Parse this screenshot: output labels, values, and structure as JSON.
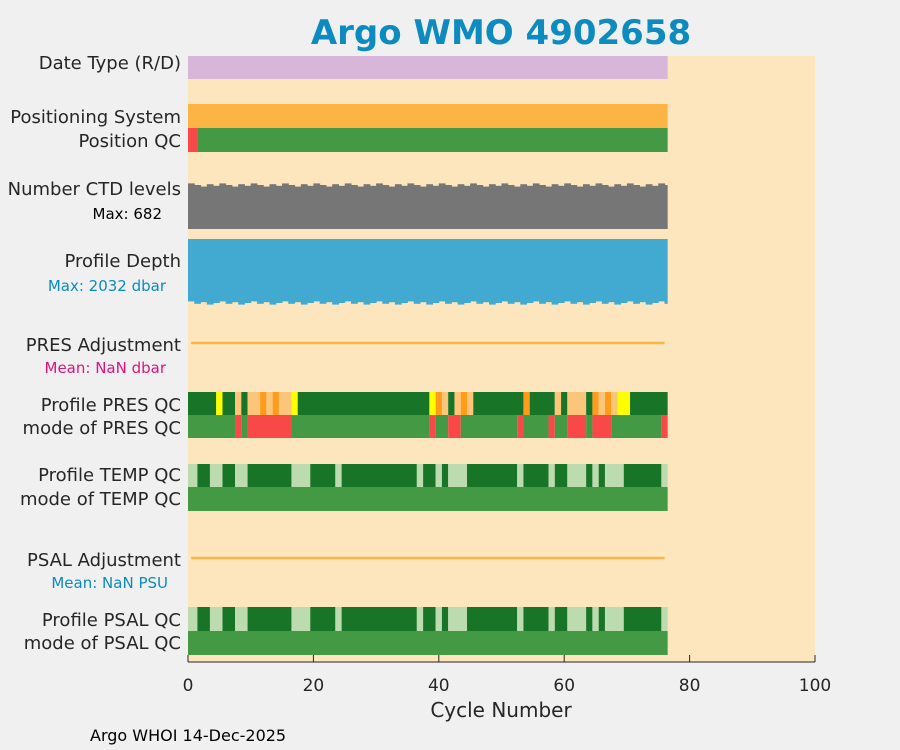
{
  "chart_data": {
    "type": "bar",
    "title": "Argo WMO 4902658",
    "xlabel": "Cycle Number",
    "xlim": [
      0,
      100
    ],
    "xticks": [
      "0",
      "20",
      "40",
      "60",
      "80",
      "100"
    ],
    "n_cycles": 76,
    "footer": "Argo WHOI 14-Dec-2025",
    "colors": {
      "title": "#0d8bbf",
      "background": "#fde6bd",
      "figure": "#f0f0f0",
      "date_type": "#d8b6d9",
      "positioning": "#fcb444",
      "qc_good": "#449944",
      "qc_bad": "#f84848",
      "qc_dark": "#187528",
      "qc_light": "#bcdcb0",
      "qc_yellow": "#ffff00",
      "qc_orange": "#ff9c1c",
      "qc_tan": "#fcc67a",
      "ctd": "#767676",
      "depth": "#42aad1",
      "adjust_line": "#fcb444",
      "pres_mean": "#e0137c",
      "psal_mean": "#0d8bbf"
    },
    "rows": {
      "date_type": {
        "label": "Date Type (R/D)"
      },
      "positioning": {
        "label": "Positioning System"
      },
      "position_qc": {
        "label": "Position QC",
        "segments": [
          [
            0,
            1,
            "qc_bad"
          ],
          [
            1,
            76,
            "qc_good"
          ]
        ]
      },
      "ctd_levels": {
        "label": "Number CTD levels",
        "max_text": "Max: 682"
      },
      "profile_depth": {
        "label": "Profile Depth",
        "max_text": "Max: 2032 dbar"
      },
      "pres_adjustment": {
        "label": "PRES Adjustment",
        "mean_text": "Mean:  NaN dbar"
      },
      "profile_pres_qc": {
        "label": "Profile PRES QC",
        "segments": [
          [
            0,
            4,
            "qc_dark"
          ],
          [
            4,
            5,
            "qc_yellow"
          ],
          [
            5,
            7,
            "qc_dark"
          ],
          [
            7,
            8,
            "qc_tan"
          ],
          [
            8,
            9,
            "qc_dark"
          ],
          [
            9,
            11,
            "qc_tan"
          ],
          [
            11,
            12,
            "qc_orange"
          ],
          [
            12,
            13,
            "qc_tan"
          ],
          [
            13,
            14,
            "qc_orange"
          ],
          [
            14,
            16,
            "qc_tan"
          ],
          [
            16,
            17,
            "qc_yellow"
          ],
          [
            17,
            38,
            "qc_dark"
          ],
          [
            38,
            39,
            "qc_yellow"
          ],
          [
            39,
            40,
            "qc_orange"
          ],
          [
            40,
            41,
            "qc_tan"
          ],
          [
            41,
            42,
            "qc_dark"
          ],
          [
            42,
            43,
            "qc_tan"
          ],
          [
            43,
            44,
            "qc_orange"
          ],
          [
            44,
            45,
            "qc_tan"
          ],
          [
            45,
            53,
            "qc_dark"
          ],
          [
            53,
            54,
            "qc_orange"
          ],
          [
            54,
            58,
            "qc_dark"
          ],
          [
            58,
            59,
            "qc_tan"
          ],
          [
            59,
            60,
            "qc_dark"
          ],
          [
            60,
            63,
            "qc_tan"
          ],
          [
            63,
            64,
            "qc_dark"
          ],
          [
            64,
            65,
            "qc_orange"
          ],
          [
            65,
            66,
            "qc_tan"
          ],
          [
            66,
            67,
            "qc_orange"
          ],
          [
            67,
            68,
            "qc_tan"
          ],
          [
            68,
            70,
            "qc_yellow"
          ],
          [
            70,
            76,
            "qc_dark"
          ]
        ]
      },
      "mode_pres_qc": {
        "label": "mode of PRES QC",
        "segments": [
          [
            0,
            7,
            "qc_good"
          ],
          [
            7,
            8,
            "qc_bad"
          ],
          [
            8,
            9,
            "qc_good"
          ],
          [
            9,
            16,
            "qc_bad"
          ],
          [
            16,
            38,
            "qc_good"
          ],
          [
            38,
            39,
            "qc_bad"
          ],
          [
            39,
            41,
            "qc_good"
          ],
          [
            41,
            43,
            "qc_bad"
          ],
          [
            43,
            52,
            "qc_good"
          ],
          [
            52,
            53,
            "qc_bad"
          ],
          [
            53,
            57,
            "qc_good"
          ],
          [
            57,
            58,
            "qc_bad"
          ],
          [
            58,
            60,
            "qc_good"
          ],
          [
            60,
            63,
            "qc_bad"
          ],
          [
            63,
            64,
            "qc_good"
          ],
          [
            64,
            67,
            "qc_bad"
          ],
          [
            67,
            75,
            "qc_good"
          ],
          [
            75,
            76,
            "qc_bad"
          ]
        ]
      },
      "profile_temp_qc": {
        "label": "Profile TEMP QC",
        "segments": [
          [
            0,
            1,
            "qc_light"
          ],
          [
            1,
            3,
            "qc_dark"
          ],
          [
            3,
            5,
            "qc_light"
          ],
          [
            5,
            7,
            "qc_dark"
          ],
          [
            7,
            9,
            "qc_light"
          ],
          [
            9,
            16,
            "qc_dark"
          ],
          [
            16,
            19,
            "qc_light"
          ],
          [
            19,
            23,
            "qc_dark"
          ],
          [
            23,
            24,
            "qc_light"
          ],
          [
            24,
            36,
            "qc_dark"
          ],
          [
            36,
            37,
            "qc_light"
          ],
          [
            37,
            39,
            "qc_dark"
          ],
          [
            39,
            40,
            "qc_light"
          ],
          [
            40,
            41,
            "qc_dark"
          ],
          [
            41,
            44,
            "qc_light"
          ],
          [
            44,
            52,
            "qc_dark"
          ],
          [
            52,
            53,
            "qc_light"
          ],
          [
            53,
            57,
            "qc_dark"
          ],
          [
            57,
            58,
            "qc_light"
          ],
          [
            58,
            60,
            "qc_dark"
          ],
          [
            60,
            63,
            "qc_light"
          ],
          [
            63,
            64,
            "qc_dark"
          ],
          [
            64,
            65,
            "qc_light"
          ],
          [
            65,
            66,
            "qc_dark"
          ],
          [
            66,
            69,
            "qc_light"
          ],
          [
            69,
            75,
            "qc_dark"
          ],
          [
            75,
            76,
            "qc_light"
          ]
        ]
      },
      "mode_temp_qc": {
        "label": "mode of TEMP QC",
        "segments": [
          [
            0,
            76,
            "qc_good"
          ]
        ]
      },
      "psal_adjustment": {
        "label": "PSAL Adjustment",
        "mean_text": "Mean:  NaN PSU"
      },
      "profile_psal_qc": {
        "label": "Profile PSAL QC",
        "segments": [
          [
            0,
            1,
            "qc_light"
          ],
          [
            1,
            3,
            "qc_dark"
          ],
          [
            3,
            5,
            "qc_light"
          ],
          [
            5,
            7,
            "qc_dark"
          ],
          [
            7,
            9,
            "qc_light"
          ],
          [
            9,
            16,
            "qc_dark"
          ],
          [
            16,
            19,
            "qc_light"
          ],
          [
            19,
            23,
            "qc_dark"
          ],
          [
            23,
            24,
            "qc_light"
          ],
          [
            24,
            36,
            "qc_dark"
          ],
          [
            36,
            37,
            "qc_light"
          ],
          [
            37,
            39,
            "qc_dark"
          ],
          [
            39,
            40,
            "qc_light"
          ],
          [
            40,
            41,
            "qc_dark"
          ],
          [
            41,
            44,
            "qc_light"
          ],
          [
            44,
            52,
            "qc_dark"
          ],
          [
            52,
            53,
            "qc_light"
          ],
          [
            53,
            57,
            "qc_dark"
          ],
          [
            57,
            58,
            "qc_light"
          ],
          [
            58,
            60,
            "qc_dark"
          ],
          [
            60,
            63,
            "qc_light"
          ],
          [
            63,
            64,
            "qc_dark"
          ],
          [
            64,
            65,
            "qc_light"
          ],
          [
            65,
            66,
            "qc_dark"
          ],
          [
            66,
            69,
            "qc_light"
          ],
          [
            69,
            75,
            "qc_dark"
          ],
          [
            75,
            76,
            "qc_light"
          ]
        ]
      },
      "mode_psal_qc": {
        "label": "mode of PSAL QC",
        "segments": [
          [
            0,
            76,
            "qc_good"
          ]
        ]
      }
    }
  }
}
